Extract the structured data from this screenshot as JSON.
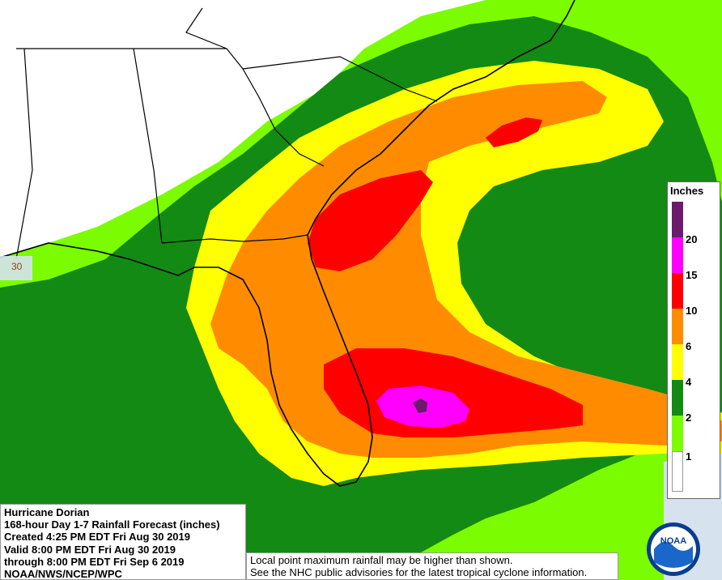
{
  "map": {
    "latitude_label": "30",
    "land_color": "#ffffff",
    "water_color": "#d6e2ee"
  },
  "legend": {
    "title": "Inches",
    "entries": [
      {
        "label": "20",
        "color": "#6b1a6e"
      },
      {
        "label": "15",
        "color": "#ff00ff"
      },
      {
        "label": "10",
        "color": "#ff0000"
      },
      {
        "label": "6",
        "color": "#ff8c00"
      },
      {
        "label": "4",
        "color": "#ffff00"
      },
      {
        "label": "2",
        "color": "#138a13"
      },
      {
        "label": "1",
        "color": "#7cfc00"
      },
      {
        "label": "",
        "color": "#ffffff"
      }
    ]
  },
  "info": {
    "line1": "Hurricane Dorian",
    "line2": "168-hour Day 1-7 Rainfall Forecast (inches)",
    "line3": "Created 4:25 PM EDT Fri Aug 30 2019",
    "line4": "Valid 8:00 PM EDT Fri Aug 30 2019",
    "line5": "through 8:00 PM EDT Fri Sep 6 2019",
    "line6": "NOAA/NWS/NCEP/WPC"
  },
  "note": {
    "line1": "Local point maximum rainfall may be higher than shown.",
    "line2": "See the NHC public advisories for the latest tropical cyclone information."
  },
  "logo": {
    "text": "NOAA"
  }
}
